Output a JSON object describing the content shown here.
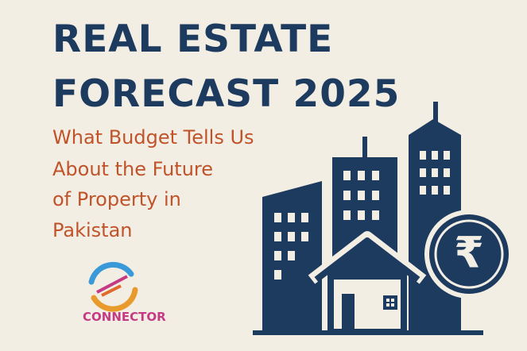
{
  "header": {
    "title_lines": [
      "REAL ESTATE",
      "FORECAST 2025"
    ]
  },
  "subtitle": {
    "lines": [
      "What Budget Tells Us",
      "About the Future",
      "of Property in",
      "Pakistan"
    ]
  },
  "logo": {
    "text": "CONNECTOR"
  },
  "icon": {
    "symbol": "₹"
  }
}
